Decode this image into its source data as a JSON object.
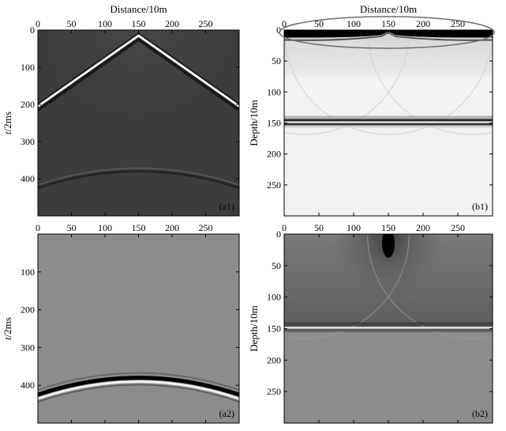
{
  "chart_data": [
    {
      "type": "heatmap",
      "panel_label": "(a1)",
      "title": "",
      "xlabel": "Distance/10m",
      "ylabel": "t/2ms",
      "xlim": [
        0,
        300
      ],
      "ylim": [
        0,
        500
      ],
      "xticks": [
        0,
        50,
        100,
        150,
        200,
        250
      ],
      "yticks": [
        0,
        100,
        200,
        300,
        400
      ],
      "background": "#3c3c3c",
      "events": [
        {
          "kind": "direct_wave",
          "apex": [
            150,
            15
          ],
          "ends": [
            [
              0,
              205
            ],
            [
              300,
              205
            ]
          ]
        },
        {
          "kind": "reflection",
          "apex": [
            150,
            380
          ],
          "ends": [
            [
              0,
              425
            ],
            [
              300,
              425
            ]
          ]
        }
      ]
    },
    {
      "type": "heatmap",
      "panel_label": "(b1)",
      "title": "",
      "xlabel": "Distance/10m",
      "ylabel": "Depth/10m",
      "xlim": [
        0,
        300
      ],
      "ylim": [
        0,
        300
      ],
      "xticks": [
        0,
        50,
        100,
        150,
        200,
        250
      ],
      "yticks": [
        0,
        50,
        100,
        150,
        200,
        250
      ],
      "background": "#f2f2f2",
      "events": [
        {
          "kind": "interface",
          "depth": 150
        },
        {
          "kind": "near_surface_artifact",
          "depth_range": [
            0,
            15
          ],
          "highlighted": true
        }
      ]
    },
    {
      "type": "heatmap",
      "panel_label": "(a2)",
      "title": "",
      "xlabel": "",
      "ylabel": "t/2ms",
      "xlim": [
        0,
        300
      ],
      "ylim": [
        0,
        500
      ],
      "xticks": [
        0,
        50,
        100,
        150,
        200,
        250
      ],
      "yticks": [
        100,
        200,
        300,
        400
      ],
      "background": "#8c8c8c",
      "events": [
        {
          "kind": "reflection",
          "apex": [
            150,
            380
          ],
          "ends": [
            [
              0,
              425
            ],
            [
              300,
              425
            ]
          ]
        }
      ]
    },
    {
      "type": "heatmap",
      "panel_label": "(b2)",
      "title": "",
      "xlabel": "",
      "ylabel": "Depth/10m",
      "xlim": [
        0,
        300
      ],
      "ylim": [
        0,
        300
      ],
      "xticks": [
        0,
        50,
        100,
        150,
        200,
        250
      ],
      "yticks": [
        0,
        50,
        100,
        150,
        200,
        250
      ],
      "background": "#8c8c8c",
      "events": [
        {
          "kind": "interface",
          "depth": 150
        },
        {
          "kind": "source_blob",
          "center": [
            150,
            15
          ]
        }
      ]
    }
  ]
}
